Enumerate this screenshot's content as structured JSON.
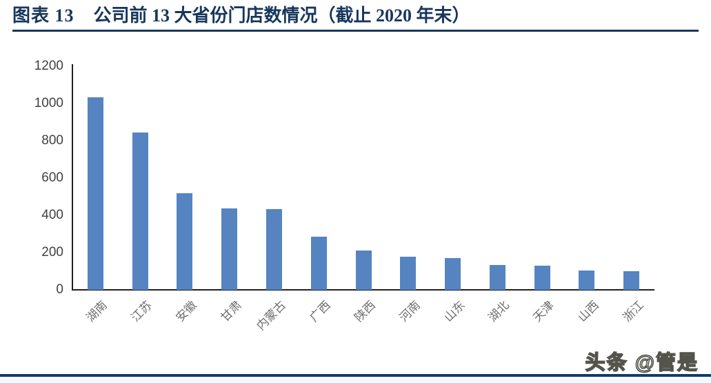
{
  "header": {
    "figure_label": "图表 13",
    "title": "公司前 13 大省份门店数情况（截止 2020 年末）"
  },
  "watermark": "头条 @管是",
  "colors": {
    "bar": "#5584C1",
    "title_text": "#17365D",
    "title_rule": "#17365D",
    "bottom_rule": "#123A6B",
    "axis_line": "#1F1F1F",
    "y_tick_label": "#404040",
    "x_category_label": "#6E6E6E"
  },
  "chart_data": {
    "type": "bar",
    "title": "公司前13大省份门店数情况（截止2020年末）",
    "categories": [
      "湖南",
      "江苏",
      "安徽",
      "甘肃",
      "内蒙古",
      "广西",
      "陕西",
      "河南",
      "山东",
      "湖北",
      "天津",
      "山西",
      "浙江"
    ],
    "values": [
      1035,
      845,
      520,
      438,
      433,
      285,
      210,
      177,
      172,
      133,
      130,
      103,
      99
    ],
    "xlabel": "",
    "ylabel": "",
    "ylim": [
      0,
      1200
    ],
    "yticks": [
      0,
      200,
      400,
      600,
      800,
      1000,
      1200
    ],
    "grid": false,
    "legend": false,
    "bar_color": "#5584C1",
    "x_label_rotation_deg": 45
  }
}
